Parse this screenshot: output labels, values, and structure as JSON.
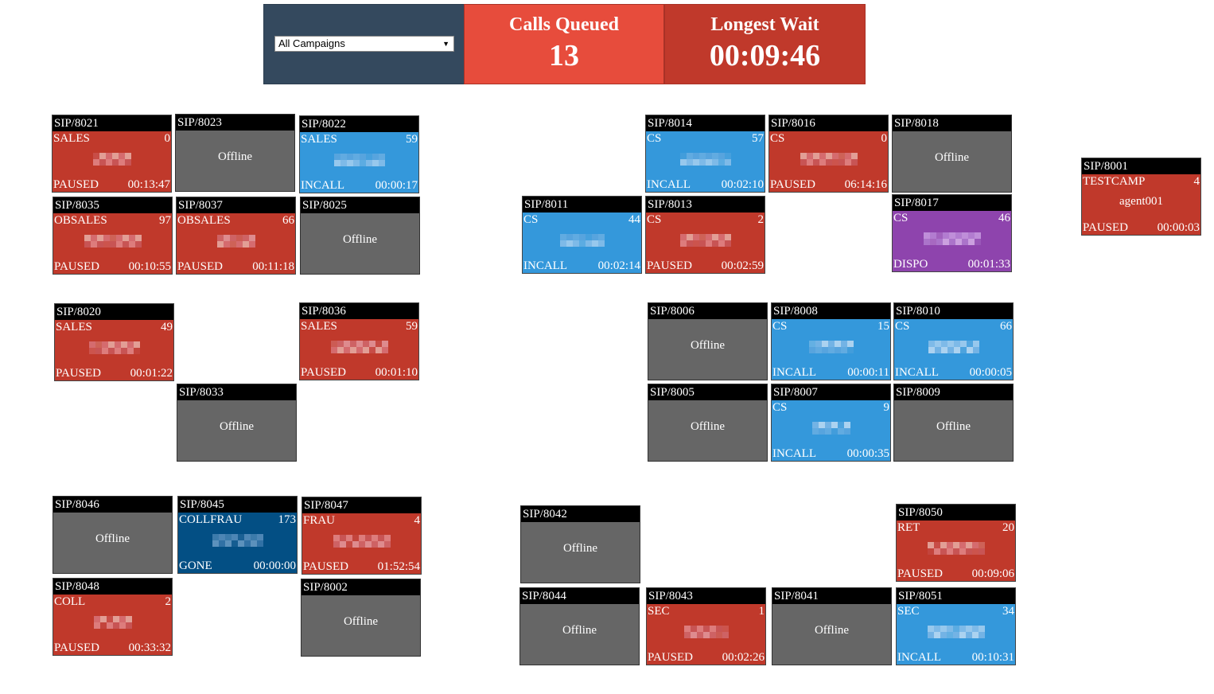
{
  "header": {
    "campaign_select": "All Campaigns",
    "calls_queued_label": "Calls Queued",
    "calls_queued_value": "13",
    "longest_wait_label": "Longest Wait",
    "longest_wait_value": "00:09:46"
  },
  "colors": {
    "paused": "#c0392b",
    "incall": "#3498db",
    "gone": "#034f84",
    "dispo": "#8e44ad",
    "offline": "#666666",
    "extension_bar": "#000000"
  },
  "agents": [
    {
      "ext": "SIP/8021",
      "kind": "red",
      "campaign": "SALES",
      "count": "0",
      "status": "PAUSED",
      "time": "00:13:47"
    },
    {
      "ext": "SIP/8023",
      "kind": "gray",
      "offline": "Offline"
    },
    {
      "ext": "SIP/8022",
      "kind": "blue",
      "campaign": "SALES",
      "count": "59",
      "status": "INCALL",
      "time": "00:00:17"
    },
    {
      "ext": "SIP/8035",
      "kind": "red",
      "campaign": "OBSALES",
      "count": "97",
      "status": "PAUSED",
      "time": "00:10:55"
    },
    {
      "ext": "SIP/8037",
      "kind": "red",
      "campaign": "OBSALES",
      "count": "66",
      "status": "PAUSED",
      "time": "00:11:18"
    },
    {
      "ext": "SIP/8025",
      "kind": "gray",
      "offline": "Offline"
    },
    {
      "ext": "SIP/8020",
      "kind": "red",
      "campaign": "SALES",
      "count": "49",
      "status": "PAUSED",
      "time": "00:01:22"
    },
    {
      "ext": "SIP/8036",
      "kind": "red",
      "campaign": "SALES",
      "count": "59",
      "status": "PAUSED",
      "time": "00:01:10"
    },
    {
      "ext": "SIP/8033",
      "kind": "gray",
      "offline": "Offline"
    },
    {
      "ext": "SIP/8046",
      "kind": "gray",
      "offline": "Offline"
    },
    {
      "ext": "SIP/8045",
      "kind": "navy",
      "campaign": "COLLFRAU",
      "count": "173",
      "status": "GONE",
      "time": "00:00:00"
    },
    {
      "ext": "SIP/8047",
      "kind": "red",
      "campaign": "FRAU",
      "count": "4",
      "status": "PAUSED",
      "time": "01:52:54"
    },
    {
      "ext": "SIP/8048",
      "kind": "red",
      "campaign": "COLL",
      "count": "2",
      "status": "PAUSED",
      "time": "00:33:32"
    },
    {
      "ext": "SIP/8002",
      "kind": "gray",
      "offline": "Offline"
    },
    {
      "ext": "SIP/8014",
      "kind": "blue",
      "campaign": "CS",
      "count": "57",
      "status": "INCALL",
      "time": "00:02:10"
    },
    {
      "ext": "SIP/8016",
      "kind": "red",
      "campaign": "CS",
      "count": "0",
      "status": "PAUSED",
      "time": "06:14:16"
    },
    {
      "ext": "SIP/8018",
      "kind": "gray",
      "offline": "Offline"
    },
    {
      "ext": "SIP/8011",
      "kind": "blue",
      "campaign": "CS",
      "count": "44",
      "status": "INCALL",
      "time": "00:02:14"
    },
    {
      "ext": "SIP/8013",
      "kind": "red",
      "campaign": "CS",
      "count": "2",
      "status": "PAUSED",
      "time": "00:02:59"
    },
    {
      "ext": "SIP/8017",
      "kind": "purple",
      "campaign": "CS",
      "count": "46",
      "status": "DISPO",
      "time": "00:01:33"
    },
    {
      "ext": "SIP/8006",
      "kind": "gray",
      "offline": "Offline"
    },
    {
      "ext": "SIP/8008",
      "kind": "blue",
      "campaign": "CS",
      "count": "15",
      "status": "INCALL",
      "time": "00:00:11"
    },
    {
      "ext": "SIP/8010",
      "kind": "blue",
      "campaign": "CS",
      "count": "66",
      "status": "INCALL",
      "time": "00:00:05"
    },
    {
      "ext": "SIP/8005",
      "kind": "gray",
      "offline": "Offline"
    },
    {
      "ext": "SIP/8007",
      "kind": "blue",
      "campaign": "CS",
      "count": "9",
      "status": "INCALL",
      "time": "00:00:35"
    },
    {
      "ext": "SIP/8009",
      "kind": "gray",
      "offline": "Offline"
    },
    {
      "ext": "SIP/8042",
      "kind": "gray",
      "offline": "Offline"
    },
    {
      "ext": "SIP/8050",
      "kind": "red",
      "campaign": "RET",
      "count": "20",
      "status": "PAUSED",
      "time": "00:09:06"
    },
    {
      "ext": "SIP/8044",
      "kind": "gray",
      "offline": "Offline"
    },
    {
      "ext": "SIP/8043",
      "kind": "red",
      "campaign": "SEC",
      "count": "1",
      "status": "PAUSED",
      "time": "00:02:26"
    },
    {
      "ext": "SIP/8041",
      "kind": "gray",
      "offline": "Offline"
    },
    {
      "ext": "SIP/8051",
      "kind": "blue",
      "campaign": "SEC",
      "count": "34",
      "status": "INCALL",
      "time": "00:10:31"
    },
    {
      "ext": "SIP/8001",
      "kind": "red",
      "campaign": "TESTCAMP",
      "count": "4",
      "status": "PAUSED",
      "time": "00:00:03",
      "agent": "agent001"
    }
  ]
}
